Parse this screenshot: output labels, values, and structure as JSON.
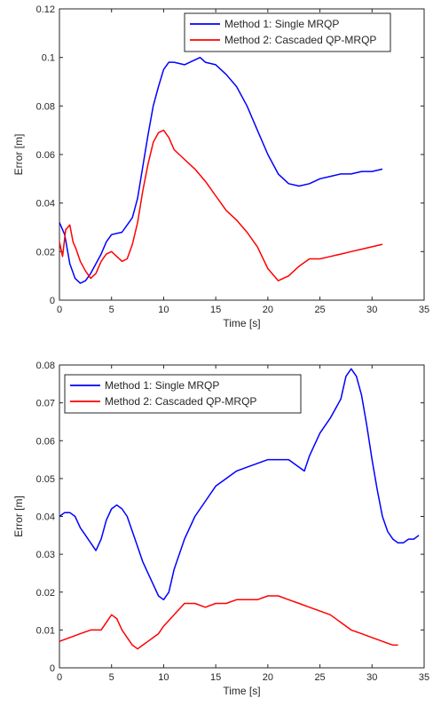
{
  "chart_data": [
    {
      "type": "line",
      "xlabel": "Time [s]",
      "ylabel": "Error [m]",
      "xlim": [
        0,
        35
      ],
      "ylim": [
        0,
        0.12
      ],
      "xticks": [
        "0",
        "5",
        "10",
        "15",
        "20",
        "25",
        "30",
        "35"
      ],
      "yticks": [
        "0",
        "0.02",
        "0.04",
        "0.06",
        "0.08",
        "0.1",
        "0.12"
      ],
      "legend_position": "top-right",
      "grid": false,
      "series": [
        {
          "name": "Method 1: Single MRQP",
          "color": "#0000ff",
          "x": [
            0,
            0.5,
            1.0,
            1.5,
            2.0,
            2.5,
            3.0,
            3.5,
            4.0,
            4.5,
            5.0,
            6.0,
            7.0,
            7.5,
            8.0,
            8.5,
            9.0,
            9.5,
            10.0,
            10.5,
            11.0,
            12.0,
            13.0,
            13.5,
            14.0,
            15.0,
            16.0,
            17.0,
            18.0,
            19.0,
            20.0,
            21.0,
            22.0,
            23.0,
            24.0,
            25.0,
            26.0,
            27.0,
            28.0,
            29.0,
            30.0,
            31.0
          ],
          "y": [
            0.032,
            0.027,
            0.015,
            0.009,
            0.007,
            0.008,
            0.011,
            0.015,
            0.019,
            0.024,
            0.027,
            0.028,
            0.034,
            0.042,
            0.055,
            0.068,
            0.08,
            0.088,
            0.095,
            0.098,
            0.098,
            0.097,
            0.099,
            0.1,
            0.098,
            0.097,
            0.093,
            0.088,
            0.08,
            0.07,
            0.06,
            0.052,
            0.048,
            0.047,
            0.048,
            0.05,
            0.051,
            0.052,
            0.052,
            0.053,
            0.053,
            0.054
          ]
        },
        {
          "name": "Method 2: Cascaded QP-MRQP",
          "color": "#ff0000",
          "x": [
            0,
            0.3,
            0.6,
            1.0,
            1.3,
            1.6,
            2.0,
            2.5,
            3.0,
            3.5,
            4.0,
            4.5,
            5.0,
            5.5,
            6.0,
            6.5,
            7.0,
            7.5,
            8.0,
            8.5,
            9.0,
            9.5,
            10.0,
            10.5,
            11.0,
            12.0,
            13.0,
            14.0,
            15.0,
            16.0,
            17.0,
            18.0,
            19.0,
            20.0,
            21.0,
            22.0,
            23.0,
            24.0,
            25.0,
            26.0,
            27.0,
            28.0,
            29.0,
            30.0,
            31.0
          ],
          "y": [
            0.024,
            0.018,
            0.029,
            0.031,
            0.024,
            0.021,
            0.016,
            0.012,
            0.009,
            0.011,
            0.016,
            0.019,
            0.02,
            0.018,
            0.016,
            0.017,
            0.023,
            0.032,
            0.045,
            0.056,
            0.065,
            0.069,
            0.07,
            0.067,
            0.062,
            0.058,
            0.054,
            0.049,
            0.043,
            0.037,
            0.033,
            0.028,
            0.022,
            0.013,
            0.008,
            0.01,
            0.014,
            0.017,
            0.017,
            0.018,
            0.019,
            0.02,
            0.021,
            0.022,
            0.023
          ]
        }
      ]
    },
    {
      "type": "line",
      "xlabel": "Time [s]",
      "ylabel": "Error [m]",
      "xlim": [
        0,
        35
      ],
      "ylim": [
        0,
        0.08
      ],
      "xticks": [
        "0",
        "5",
        "10",
        "15",
        "20",
        "25",
        "30",
        "35"
      ],
      "yticks": [
        "0",
        "0.01",
        "0.02",
        "0.03",
        "0.04",
        "0.05",
        "0.06",
        "0.07",
        "0.08"
      ],
      "legend_position": "top-left",
      "grid": false,
      "series": [
        {
          "name": "Method 1: Single MRQP",
          "color": "#0000ff",
          "x": [
            0,
            0.5,
            1.0,
            1.5,
            2.0,
            2.5,
            3.0,
            3.5,
            4.0,
            4.5,
            5.0,
            5.5,
            6.0,
            6.5,
            7.0,
            7.5,
            8.0,
            8.5,
            9.0,
            9.5,
            10.0,
            10.5,
            11.0,
            12.0,
            13.0,
            14.0,
            15.0,
            16.0,
            17.0,
            18.0,
            19.0,
            20.0,
            21.0,
            22.0,
            23.0,
            23.5,
            24.0,
            25.0,
            26.0,
            27.0,
            27.5,
            28.0,
            28.5,
            29.0,
            29.5,
            30.0,
            30.5,
            31.0,
            31.5,
            32.0,
            32.5,
            33.0,
            33.5,
            34.0,
            34.5
          ],
          "y": [
            0.04,
            0.041,
            0.041,
            0.04,
            0.037,
            0.035,
            0.033,
            0.031,
            0.034,
            0.039,
            0.042,
            0.043,
            0.042,
            0.04,
            0.036,
            0.032,
            0.028,
            0.025,
            0.022,
            0.019,
            0.018,
            0.02,
            0.026,
            0.034,
            0.04,
            0.044,
            0.048,
            0.05,
            0.052,
            0.053,
            0.054,
            0.055,
            0.055,
            0.055,
            0.053,
            0.052,
            0.056,
            0.062,
            0.066,
            0.071,
            0.077,
            0.079,
            0.077,
            0.072,
            0.064,
            0.055,
            0.047,
            0.04,
            0.036,
            0.034,
            0.033,
            0.033,
            0.034,
            0.034,
            0.035
          ]
        },
        {
          "name": "Method 2: Cascaded QP-MRQP",
          "color": "#ff0000",
          "x": [
            0,
            1.0,
            2.0,
            3.0,
            4.0,
            4.5,
            5.0,
            5.5,
            6.0,
            6.5,
            7.0,
            7.5,
            8.0,
            8.5,
            9.0,
            9.5,
            10.0,
            11.0,
            12.0,
            13.0,
            14.0,
            15.0,
            16.0,
            17.0,
            18.0,
            19.0,
            20.0,
            21.0,
            22.0,
            23.0,
            24.0,
            25.0,
            26.0,
            27.0,
            28.0,
            29.0,
            30.0,
            31.0,
            32.0,
            32.5
          ],
          "y": [
            0.007,
            0.008,
            0.009,
            0.01,
            0.01,
            0.012,
            0.014,
            0.013,
            0.01,
            0.008,
            0.006,
            0.005,
            0.006,
            0.007,
            0.008,
            0.009,
            0.011,
            0.014,
            0.017,
            0.017,
            0.016,
            0.017,
            0.017,
            0.018,
            0.018,
            0.018,
            0.019,
            0.019,
            0.018,
            0.017,
            0.016,
            0.015,
            0.014,
            0.012,
            0.01,
            0.009,
            0.008,
            0.007,
            0.006,
            0.006
          ]
        }
      ]
    }
  ]
}
